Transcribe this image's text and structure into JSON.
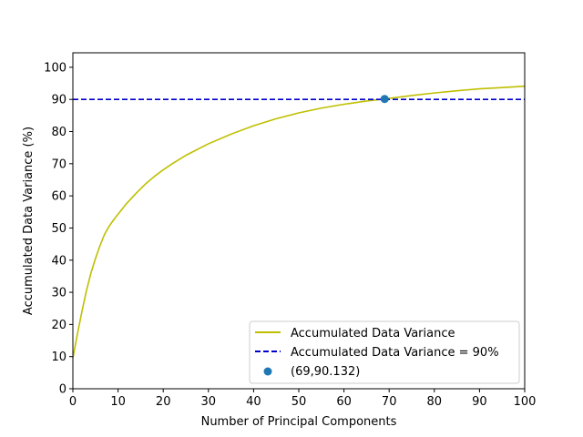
{
  "chart_data": {
    "type": "line",
    "xlabel": "Number of Principal Components",
    "ylabel": "Accumulated Data Variance (%)",
    "xlim": [
      0,
      100
    ],
    "ylim": [
      0,
      104.5
    ],
    "x_ticks": [
      "0",
      "10",
      "20",
      "30",
      "40",
      "50",
      "60",
      "70",
      "80",
      "90",
      "100"
    ],
    "y_ticks": [
      "0",
      "10",
      "20",
      "30",
      "40",
      "50",
      "60",
      "70",
      "80",
      "90",
      "100"
    ],
    "grid": false,
    "legend_position": "lower-right",
    "series": [
      {
        "name": "Accumulated Data Variance",
        "style": "solid",
        "color": "#bfbf00",
        "x": [
          0,
          1,
          2,
          3,
          4,
          5,
          6,
          7,
          8,
          9,
          10,
          12,
          14,
          16,
          18,
          20,
          22,
          25,
          30,
          35,
          40,
          45,
          50,
          55,
          60,
          65,
          69,
          75,
          80,
          85,
          90,
          95,
          100
        ],
        "y": [
          9.5,
          17,
          24,
          30.5,
          36,
          40.5,
          44.5,
          48,
          50.5,
          52.5,
          54.3,
          57.8,
          60.8,
          63.6,
          66,
          68.1,
          70,
          72.6,
          76.2,
          79.2,
          81.8,
          84,
          85.8,
          87.3,
          88.5,
          89.5,
          90.132,
          91.2,
          92,
          92.7,
          93.3,
          93.7,
          94.1
        ]
      },
      {
        "name": "Accumulated Data Variance = 90%",
        "style": "dashed",
        "color": "#0000cc",
        "x": [
          0,
          100
        ],
        "y": [
          90,
          90
        ]
      }
    ],
    "points": [
      {
        "name": "(69,90.132)",
        "x": 69,
        "y": 90.132,
        "color": "#1f77b4"
      }
    ]
  }
}
